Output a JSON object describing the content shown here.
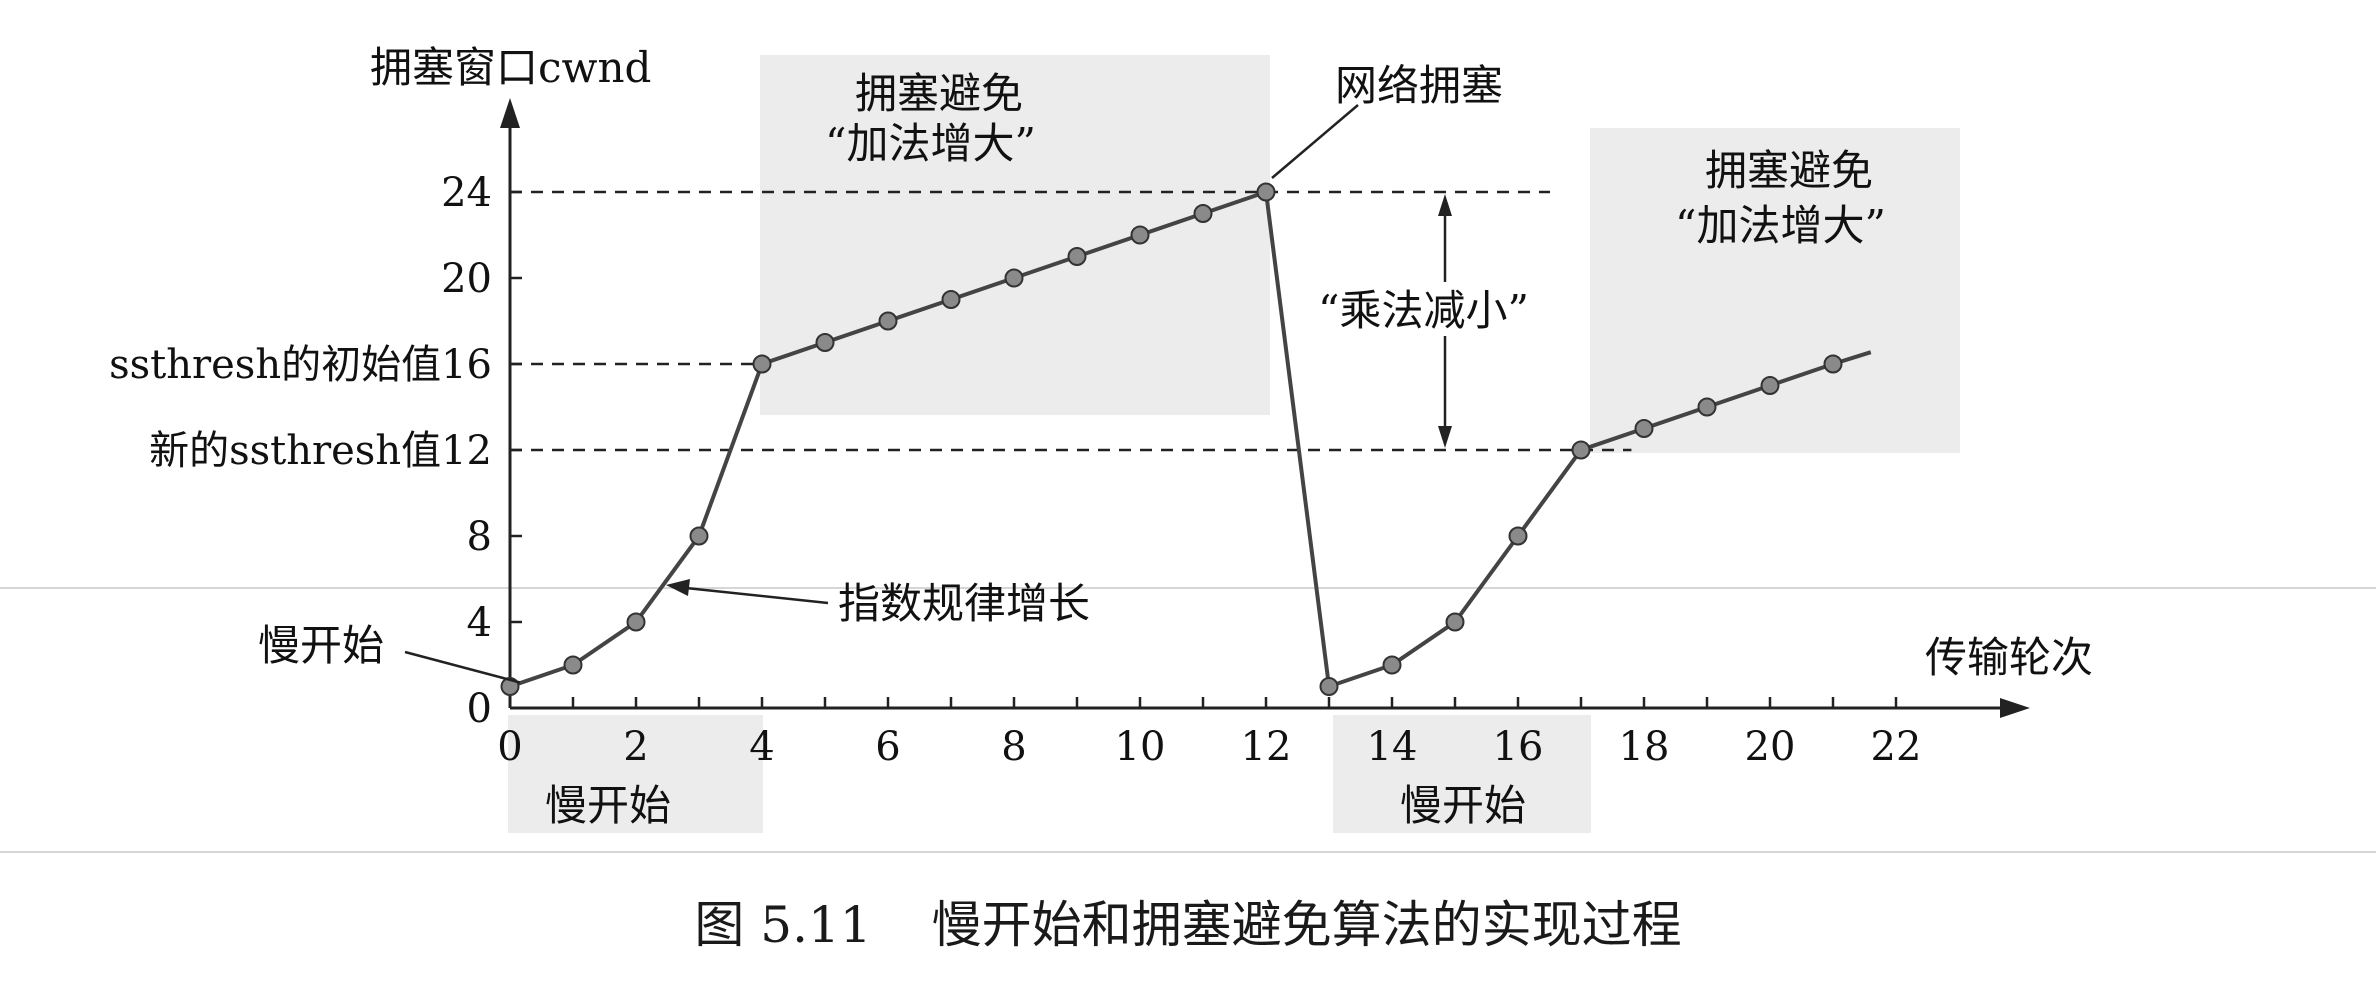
{
  "chart_data": {
    "type": "line",
    "y_axis_title": "拥塞窗口cwnd",
    "x_axis_title": "传输轮次",
    "xlim": [
      0,
      22
    ],
    "ylim": [
      0,
      24
    ],
    "x_ticks": [
      "0",
      "2",
      "4",
      "6",
      "8",
      "10",
      "12",
      "14",
      "16",
      "18",
      "20",
      "22"
    ],
    "y_ticks": [
      "0",
      "4",
      "8",
      "20",
      "24"
    ],
    "y_ticks_special": [
      {
        "value": 16,
        "label": "ssthresh的初始值16"
      },
      {
        "value": 12,
        "label": "新的ssthresh值12"
      }
    ],
    "series": [
      {
        "points": [
          [
            0,
            1
          ],
          [
            1,
            2
          ],
          [
            2,
            4
          ],
          [
            3,
            8
          ],
          [
            4,
            16
          ],
          [
            5,
            17
          ],
          [
            6,
            18
          ],
          [
            7,
            19
          ],
          [
            8,
            20
          ],
          [
            9,
            21
          ],
          [
            10,
            22
          ],
          [
            11,
            23
          ],
          [
            12,
            24
          ],
          [
            13,
            1
          ],
          [
            14,
            2
          ],
          [
            15,
            4
          ],
          [
            16,
            8
          ],
          [
            17,
            12
          ],
          [
            18,
            13
          ],
          [
            19,
            14
          ],
          [
            20,
            15
          ],
          [
            21,
            16
          ]
        ],
        "line_extends_to": [
          21.6,
          16.55
        ]
      }
    ],
    "reference_lines_y": [
      24,
      16,
      12
    ],
    "annotations": {
      "ca1_line1": "拥塞避免",
      "ca1_line2": "“加法增大”",
      "congestion": "网络拥塞",
      "ca2_line1": "拥塞避免",
      "ca2_line2": "“加法增大”",
      "md": "“乘法减小”",
      "exp_growth": "指数规律增长",
      "slow_start_left": "慢开始",
      "slow_start_1": "慢开始",
      "slow_start_2": "慢开始"
    }
  },
  "caption": {
    "number": "图 5.11",
    "text": "慢开始和拥塞避免算法的实现过程"
  }
}
